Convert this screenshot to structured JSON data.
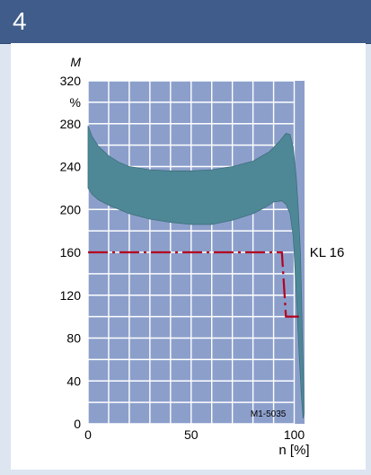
{
  "header": {
    "number": "4"
  },
  "chart_data": {
    "type": "area",
    "y_axis": {
      "title": "M",
      "unit": "%",
      "range": [
        0,
        320
      ],
      "ticks": [
        0,
        40,
        80,
        120,
        160,
        200,
        240,
        280,
        320
      ]
    },
    "x_axis": {
      "title": "n [%]",
      "range": [
        0,
        105
      ],
      "ticks": [
        0,
        50,
        100
      ]
    },
    "grid": true,
    "band": {
      "upper": [
        [
          0,
          278
        ],
        [
          2,
          268
        ],
        [
          5,
          259
        ],
        [
          10,
          250
        ],
        [
          15,
          244
        ],
        [
          20,
          240
        ],
        [
          30,
          237
        ],
        [
          40,
          236
        ],
        [
          50,
          236
        ],
        [
          60,
          237
        ],
        [
          70,
          240
        ],
        [
          80,
          245
        ],
        [
          88,
          254
        ],
        [
          93,
          264
        ],
        [
          96,
          271
        ],
        [
          98,
          270
        ],
        [
          99.5,
          258
        ],
        [
          101,
          230
        ],
        [
          102,
          200
        ],
        [
          103,
          160
        ],
        [
          103.5,
          120
        ],
        [
          104,
          80
        ],
        [
          104.5,
          40
        ],
        [
          104.8,
          10
        ]
      ],
      "lower": [
        [
          0,
          220
        ],
        [
          2,
          214
        ],
        [
          5,
          209
        ],
        [
          10,
          204
        ],
        [
          20,
          196
        ],
        [
          30,
          191
        ],
        [
          40,
          188
        ],
        [
          50,
          186
        ],
        [
          60,
          186
        ],
        [
          70,
          190
        ],
        [
          80,
          196
        ],
        [
          86,
          202
        ],
        [
          90,
          207
        ],
        [
          94,
          208
        ],
        [
          96,
          205
        ],
        [
          98,
          196
        ],
        [
          99.5,
          175
        ],
        [
          100.5,
          140
        ],
        [
          101.5,
          100
        ],
        [
          102.5,
          60
        ],
        [
          103.5,
          25
        ],
        [
          104.3,
          5
        ]
      ]
    },
    "limit_line": {
      "name": "KL 16",
      "color": "#b4001e",
      "points": [
        [
          0,
          160
        ],
        [
          94,
          160
        ],
        [
          96,
          100
        ],
        [
          104,
          100
        ]
      ]
    },
    "code": "M1-5035"
  },
  "colors": {
    "band": "#4e8896",
    "grid": "#ffffff",
    "plot_bg": "#8c9fcb",
    "header": "#3f5c8a",
    "frame": "#dde5f1"
  }
}
